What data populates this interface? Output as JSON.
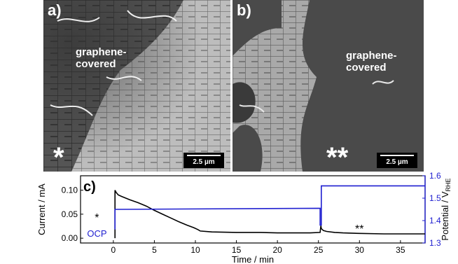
{
  "panel_a": {
    "label": "a)",
    "annotation": "graphene-\ncovered",
    "marker": "*",
    "scale_bar": "2.5 µm"
  },
  "panel_b": {
    "label": "b)",
    "annotation": "graphene-\ncovered",
    "marker": "**",
    "scale_bar": "2.5 µm"
  },
  "chart_data": {
    "type": "line",
    "panel_label": "c)",
    "xlabel": "Time / min",
    "ylabel_left": "Current / mA",
    "ylabel_right_main": "Potential / V",
    "ylabel_right_sub": "RHE",
    "xlim": [
      -4,
      38
    ],
    "ylim_left": [
      -0.01,
      0.13
    ],
    "ylim_right": [
      1.3,
      1.6
    ],
    "x_ticks": [
      0,
      5,
      10,
      15,
      20,
      25,
      30,
      35
    ],
    "y_ticks_left": [
      "0.00",
      "0.05",
      "0.10"
    ],
    "y_ticks_right": [
      "1.3",
      "1.4",
      "1.5",
      "1.6"
    ],
    "annotations": [
      {
        "text": "*",
        "x": -2.0,
        "y": 0.035
      },
      {
        "text": "OCP",
        "x": -2.0,
        "y": 0.003,
        "color": "#1f1fd0"
      },
      {
        "text": "**",
        "x": 30.0,
        "y": 0.012
      }
    ],
    "series": [
      {
        "axis": "left",
        "color": "#000000",
        "x": [
          0.2,
          0.2,
          0.35,
          0.6,
          1,
          2,
          3,
          4,
          5,
          6,
          7,
          8,
          9,
          9.8,
          10.3,
          10.6,
          12,
          15,
          18,
          20,
          22,
          24,
          25.2,
          25.3,
          25.35,
          25.6,
          26,
          27,
          28,
          30,
          33,
          35,
          38
        ],
        "y": [
          0.0,
          0.1,
          0.095,
          0.09,
          0.087,
          0.08,
          0.074,
          0.067,
          0.058,
          0.05,
          0.042,
          0.034,
          0.027,
          0.022,
          0.018,
          0.015,
          0.013,
          0.012,
          0.012,
          0.011,
          0.011,
          0.011,
          0.012,
          0.026,
          0.02,
          0.016,
          0.014,
          0.012,
          0.011,
          0.01,
          0.009,
          0.009,
          0.009
        ]
      },
      {
        "axis": "right",
        "color": "#1f1fd0",
        "x": [
          0.2,
          0.2,
          25.2,
          25.2,
          25.35,
          25.35,
          38
        ],
        "y": [
          1.36,
          1.45,
          1.455,
          1.38,
          1.38,
          1.555,
          1.555
        ]
      }
    ]
  }
}
